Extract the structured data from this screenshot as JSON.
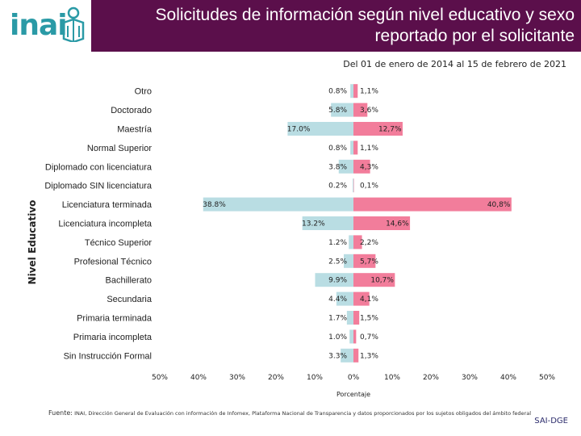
{
  "header": {
    "logo_text": "inai",
    "title": "Solicitudes de información según nivel educativo y sexo reportado por el solicitante",
    "date_range": "Del 01 de enero de 2014 al 15 de febrero de 2021"
  },
  "colors": {
    "header_bg": "#5b0f4b",
    "left_bar": "#b9dde3",
    "right_bar": "#f27d9b",
    "logo": "#2a9aa6"
  },
  "chart_data": {
    "type": "bar",
    "orientation": "horizontal-diverging",
    "title": "Solicitudes de información según nivel educativo y sexo reportado por el solicitante",
    "xlabel": "Porcentaje",
    "ylabel": "Nivel Educativo",
    "xlim": [
      -50,
      50
    ],
    "x_ticks": [
      "50%",
      "40%",
      "30%",
      "20%",
      "10%",
      "0%",
      "10%",
      "20%",
      "30%",
      "40%",
      "50%"
    ],
    "categories": [
      "Otro",
      "Doctorado",
      "Maestría",
      "Normal Superior",
      "Diplomado con licenciatura",
      "Diplomado SIN licenciatura",
      "Licenciatura terminada",
      "Licenciatura incompleta",
      "Técnico Superior",
      "Profesional Técnico",
      "Bachillerato",
      "Secundaria",
      "Primaria terminada",
      "Primaria incompleta",
      "Sin Instrucción Formal"
    ],
    "series": [
      {
        "name": "left",
        "values": [
          0.8,
          5.8,
          17.0,
          0.8,
          3.8,
          0.2,
          38.8,
          13.2,
          1.2,
          2.5,
          9.9,
          4.4,
          1.7,
          1.0,
          3.3
        ],
        "labels": [
          "0.8%",
          "5.8%",
          "17.0%",
          "0.8%",
          "3.8%",
          "0.2%",
          "38.8%",
          "13.2%",
          "1.2%",
          "2.5%",
          "9.9%",
          "4.4%",
          "1.7%",
          "1.0%",
          "3.3%"
        ]
      },
      {
        "name": "right",
        "values": [
          1.1,
          3.6,
          12.7,
          1.1,
          4.3,
          0.1,
          40.8,
          14.6,
          2.2,
          5.7,
          10.7,
          4.1,
          1.5,
          0.7,
          1.3
        ],
        "labels": [
          "1,1%",
          "3,6%",
          "12,7%",
          "1,1%",
          "4,3%",
          "0,1%",
          "40,8%",
          "14,6%",
          "2,2%",
          "5,7%",
          "10,7%",
          "4,1%",
          "1,5%",
          "0,7%",
          "1,3%"
        ]
      }
    ]
  },
  "footer": {
    "source_label": "Fuente:",
    "source_text": "INAI, Dirección General de Evaluación con información de Infomex, Plataforma Nacional de Transparencia y datos proporcionados por los sujetos obligados del ámbito federal",
    "unit": "SAI-DGE"
  }
}
